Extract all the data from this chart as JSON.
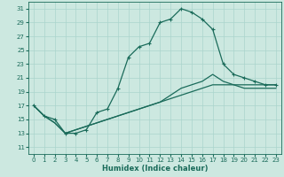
{
  "xlabel": "Humidex (Indice chaleur)",
  "xlim": [
    -0.5,
    23.5
  ],
  "ylim": [
    10,
    32
  ],
  "background_color": "#cce8e0",
  "line_color": "#1a6b5a",
  "grid_color": "#aad4cc",
  "xticks": [
    0,
    1,
    2,
    3,
    4,
    5,
    6,
    7,
    8,
    9,
    10,
    11,
    12,
    13,
    14,
    15,
    16,
    17,
    18,
    19,
    20,
    21,
    22,
    23
  ],
  "yticks": [
    11,
    13,
    15,
    17,
    19,
    21,
    23,
    25,
    27,
    29,
    31
  ],
  "series1_x": [
    0,
    1,
    2,
    3,
    4,
    5,
    6,
    7,
    8,
    9,
    10,
    11,
    12,
    13,
    14,
    15,
    16,
    17,
    18,
    19,
    20,
    21,
    22,
    23
  ],
  "series1_y": [
    17.0,
    15.5,
    15.0,
    13.0,
    13.0,
    13.5,
    16.0,
    16.5,
    19.5,
    24.0,
    25.5,
    26.0,
    29.0,
    29.5,
    31.0,
    30.5,
    29.5,
    28.0,
    23.0,
    21.5,
    21.0,
    20.5,
    20.0,
    20.0
  ],
  "series2_x": [
    0,
    1,
    2,
    3,
    4,
    5,
    6,
    7,
    8,
    9,
    10,
    11,
    12,
    13,
    14,
    15,
    16,
    17,
    18,
    19,
    20,
    21,
    22,
    23
  ],
  "series2_y": [
    17.0,
    15.5,
    14.5,
    13.0,
    13.5,
    14.0,
    14.5,
    15.0,
    15.5,
    16.0,
    16.5,
    17.0,
    17.5,
    18.0,
    18.5,
    19.0,
    19.5,
    20.0,
    20.0,
    20.0,
    20.0,
    20.0,
    20.0,
    20.0
  ],
  "series3_x": [
    0,
    1,
    2,
    3,
    4,
    5,
    6,
    7,
    8,
    9,
    10,
    11,
    12,
    13,
    14,
    15,
    16,
    17,
    18,
    19,
    20,
    21,
    22,
    23
  ],
  "series3_y": [
    17.0,
    15.5,
    14.5,
    13.0,
    13.5,
    14.0,
    14.5,
    15.0,
    15.5,
    16.0,
    16.5,
    17.0,
    17.5,
    18.5,
    19.5,
    20.0,
    20.5,
    21.5,
    20.5,
    20.0,
    19.5,
    19.5,
    19.5,
    19.5
  ],
  "markersize": 3.5,
  "linewidth": 0.9,
  "axis_fontsize": 6,
  "tick_fontsize": 5
}
